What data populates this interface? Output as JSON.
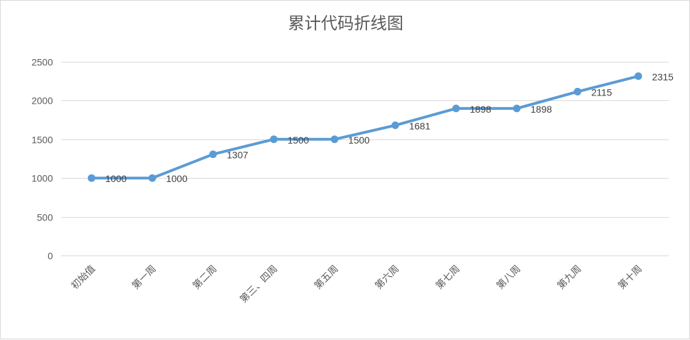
{
  "chart_data": {
    "type": "line",
    "title": "累计代码折线图",
    "xlabel": "",
    "ylabel": "",
    "categories": [
      "初始值",
      "第一周",
      "第二周",
      "第三、四周",
      "第五周",
      "第六周",
      "第七周",
      "第八周",
      "第九周",
      "第十周"
    ],
    "series": [
      {
        "values": [
          1000,
          1000,
          1307,
          1500,
          1500,
          1681,
          1898,
          1898,
          2115,
          2315
        ],
        "color": "#5b9bd5"
      }
    ],
    "ylim": [
      0,
      2500
    ],
    "yticks": [
      0,
      500,
      1000,
      1500,
      2000,
      2500
    ],
    "grid": true,
    "legend": "none",
    "data_labels": true
  }
}
